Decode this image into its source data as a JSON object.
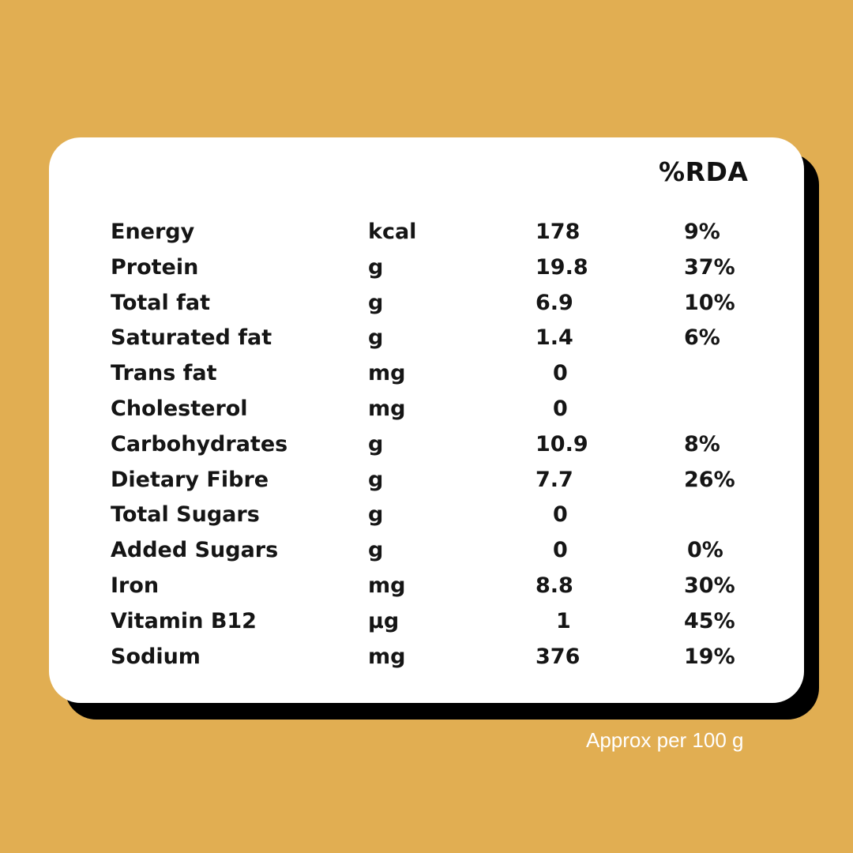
{
  "table": {
    "rda_header": "%RDA",
    "rows": [
      {
        "name": "Energy",
        "unit": "kcal",
        "value": "178",
        "rda": "9%"
      },
      {
        "name": "Protein",
        "unit": "g",
        "value": "19.8",
        "rda": "37%"
      },
      {
        "name": "Total fat",
        "unit": "g",
        "value": "6.9",
        "rda": "10%"
      },
      {
        "name": "Saturated fat",
        "unit": "g",
        "value": "1.4",
        "rda": "6%"
      },
      {
        "name": "Trans fat",
        "unit": "mg",
        "value": "0",
        "rda": ""
      },
      {
        "name": "Cholesterol",
        "unit": "mg",
        "value": "0",
        "rda": ""
      },
      {
        "name": "Carbohydrates",
        "unit": "g",
        "value": "10.9",
        "rda": "8%"
      },
      {
        "name": "Dietary Fibre",
        "unit": "g",
        "value": "7.7",
        "rda": "26%"
      },
      {
        "name": "Total Sugars",
        "unit": "g",
        "value": "0",
        "rda": ""
      },
      {
        "name": "Added Sugars",
        "unit": "g",
        "value": "0",
        "rda": "0%"
      },
      {
        "name": "Iron",
        "unit": "mg",
        "value": "8.8",
        "rda": "30%"
      },
      {
        "name": "Vitamin B12",
        "unit": "µg",
        "value": "1",
        "rda": "45%"
      },
      {
        "name": "Sodium",
        "unit": "mg",
        "value": "376",
        "rda": "19%"
      }
    ]
  },
  "footer_note": "Approx per 100 g",
  "colors": {
    "background": "#E1AE52",
    "card": "#FFFFFF",
    "shadow": "#000000",
    "text": "#151515"
  }
}
